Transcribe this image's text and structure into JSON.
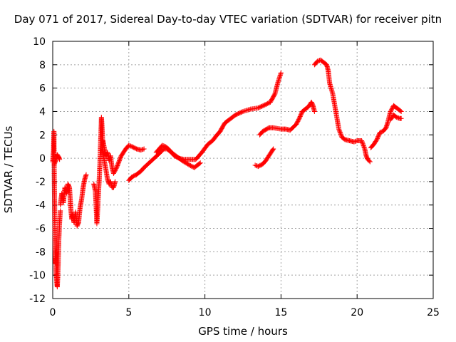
{
  "chart_data": {
    "type": "scatter",
    "title": "Day 071 of 2017, Sidereal Day-to-day VTEC variation (SDTVAR) for receiver pitn",
    "xlabel": "GPS time / hours",
    "ylabel": "SDTVAR / TECUs",
    "xlim": [
      0,
      25
    ],
    "ylim": [
      -12,
      10
    ],
    "xticks": [
      "0",
      "5",
      "10",
      "15",
      "20",
      "25"
    ],
    "yticks": [
      "-12",
      "-10",
      "-8",
      "-6",
      "-4",
      "-2",
      "0",
      "2",
      "4",
      "6",
      "8",
      "10"
    ],
    "grid": true,
    "marker": "plus",
    "color": "#ff0000",
    "segments": [
      [
        [
          0.0,
          -0.3
        ],
        [
          0.05,
          0.6
        ],
        [
          0.08,
          2.3
        ],
        [
          0.1,
          -1.5
        ],
        [
          0.12,
          -3.5
        ],
        [
          0.14,
          -6.0
        ],
        [
          0.16,
          -8.0
        ],
        [
          0.18,
          -9.0
        ],
        [
          0.2,
          -8.0
        ],
        [
          0.22,
          -9.8
        ],
        [
          0.25,
          -10.2
        ],
        [
          0.28,
          -10.8
        ],
        [
          0.3,
          -11.0
        ],
        [
          0.33,
          -10.2
        ],
        [
          0.36,
          -9.0
        ],
        [
          0.4,
          -7.0
        ],
        [
          0.45,
          -5.5
        ],
        [
          0.5,
          -4.5
        ]
      ],
      [
        [
          0.1,
          -0.5
        ],
        [
          0.2,
          -0.2
        ],
        [
          0.3,
          0.3
        ],
        [
          0.4,
          0.1
        ],
        [
          0.45,
          -0.1
        ]
      ],
      [
        [
          0.5,
          -4.0
        ],
        [
          0.6,
          -3.0
        ],
        [
          0.7,
          -3.8
        ],
        [
          0.8,
          -2.5
        ],
        [
          0.9,
          -3.0
        ],
        [
          1.0,
          -2.2
        ],
        [
          1.1,
          -2.5
        ],
        [
          1.15,
          -3.5
        ],
        [
          1.2,
          -4.5
        ],
        [
          1.25,
          -5.2
        ],
        [
          1.3,
          -4.8
        ],
        [
          1.4,
          -5.5
        ],
        [
          1.5,
          -4.6
        ],
        [
          1.6,
          -5.8
        ],
        [
          1.7,
          -5.5
        ],
        [
          1.8,
          -4.2
        ],
        [
          1.9,
          -3.5
        ],
        [
          2.0,
          -2.5
        ],
        [
          2.1,
          -1.8
        ],
        [
          2.2,
          -1.4
        ]
      ],
      [
        [
          2.7,
          -2.2
        ],
        [
          2.8,
          -2.8
        ],
        [
          2.85,
          -4.0
        ],
        [
          2.9,
          -5.6
        ],
        [
          2.95,
          -4.5
        ],
        [
          3.0,
          -3.0
        ],
        [
          3.05,
          -2.0
        ],
        [
          3.1,
          -0.5
        ],
        [
          3.15,
          1.5
        ],
        [
          3.2,
          3.5
        ],
        [
          3.25,
          2.5
        ],
        [
          3.3,
          0.5
        ],
        [
          3.4,
          -0.3
        ],
        [
          3.5,
          -1.0
        ],
        [
          3.6,
          -1.8
        ],
        [
          3.7,
          -2.2
        ],
        [
          3.8,
          -2.0
        ],
        [
          3.9,
          -2.5
        ],
        [
          4.0,
          -2.5
        ],
        [
          4.1,
          -2.0
        ]
      ],
      [
        [
          3.3,
          1.5
        ],
        [
          3.4,
          0.8
        ],
        [
          3.5,
          0.2
        ],
        [
          3.6,
          0.5
        ],
        [
          3.7,
          -0.2
        ],
        [
          3.8,
          0.2
        ],
        [
          3.9,
          -0.8
        ],
        [
          4.0,
          -1.3
        ],
        [
          4.2,
          -0.8
        ],
        [
          4.5,
          0.2
        ],
        [
          4.8,
          0.8
        ],
        [
          5.0,
          1.1
        ],
        [
          5.2,
          1.0
        ],
        [
          5.5,
          0.8
        ],
        [
          5.8,
          0.7
        ],
        [
          6.0,
          0.8
        ]
      ],
      [
        [
          5.0,
          -1.9
        ],
        [
          5.2,
          -1.6
        ],
        [
          5.5,
          -1.4
        ],
        [
          5.8,
          -1.1
        ],
        [
          6.0,
          -0.8
        ],
        [
          6.5,
          -0.2
        ],
        [
          7.0,
          0.4
        ],
        [
          7.3,
          0.8
        ],
        [
          7.5,
          0.8
        ],
        [
          8.0,
          0.3
        ],
        [
          8.5,
          -0.2
        ],
        [
          9.0,
          -0.6
        ],
        [
          9.3,
          -0.8
        ],
        [
          9.5,
          -0.6
        ],
        [
          9.7,
          -0.4
        ]
      ],
      [
        [
          6.8,
          0.5
        ],
        [
          7.0,
          0.8
        ],
        [
          7.2,
          1.1
        ],
        [
          7.4,
          1.0
        ],
        [
          7.6,
          0.8
        ],
        [
          7.8,
          0.5
        ],
        [
          8.0,
          0.2
        ],
        [
          8.3,
          0.0
        ],
        [
          8.6,
          -0.1
        ],
        [
          9.0,
          -0.1
        ],
        [
          9.4,
          -0.1
        ],
        [
          9.8,
          0.5
        ],
        [
          10.2,
          1.2
        ],
        [
          10.5,
          1.5
        ],
        [
          10.8,
          2.0
        ],
        [
          11.0,
          2.3
        ],
        [
          11.3,
          3.0
        ],
        [
          11.6,
          3.3
        ],
        [
          12.0,
          3.7
        ],
        [
          12.5,
          4.0
        ],
        [
          13.0,
          4.2
        ],
        [
          13.5,
          4.3
        ],
        [
          14.0,
          4.6
        ],
        [
          14.3,
          4.8
        ],
        [
          14.6,
          5.5
        ],
        [
          14.8,
          6.5
        ],
        [
          15.0,
          7.3
        ]
      ],
      [
        [
          13.3,
          -0.6
        ],
        [
          13.5,
          -0.7
        ],
        [
          13.8,
          -0.5
        ],
        [
          14.0,
          -0.2
        ],
        [
          14.2,
          0.2
        ],
        [
          14.4,
          0.6
        ],
        [
          14.5,
          0.8
        ]
      ],
      [
        [
          13.6,
          2.0
        ],
        [
          13.8,
          2.3
        ],
        [
          14.2,
          2.6
        ],
        [
          14.5,
          2.6
        ],
        [
          15.0,
          2.5
        ],
        [
          15.3,
          2.5
        ],
        [
          15.6,
          2.4
        ],
        [
          16.0,
          2.9
        ],
        [
          16.2,
          3.4
        ],
        [
          16.4,
          4.0
        ],
        [
          16.6,
          4.2
        ],
        [
          16.8,
          4.4
        ],
        [
          17.0,
          4.8
        ],
        [
          17.1,
          4.5
        ],
        [
          17.2,
          4.0
        ]
      ],
      [
        [
          17.2,
          8.0
        ],
        [
          17.4,
          8.3
        ],
        [
          17.6,
          8.4
        ],
        [
          17.8,
          8.2
        ],
        [
          18.0,
          8.0
        ],
        [
          18.1,
          7.5
        ],
        [
          18.2,
          6.4
        ],
        [
          18.4,
          5.5
        ],
        [
          18.6,
          4.0
        ],
        [
          18.8,
          2.5
        ],
        [
          19.0,
          1.8
        ],
        [
          19.2,
          1.6
        ],
        [
          19.5,
          1.5
        ],
        [
          19.8,
          1.4
        ],
        [
          20.0,
          1.5
        ],
        [
          20.3,
          1.5
        ],
        [
          20.5,
          0.8
        ],
        [
          20.6,
          0.2
        ],
        [
          20.7,
          -0.1
        ],
        [
          20.85,
          -0.3
        ]
      ],
      [
        [
          20.9,
          0.9
        ],
        [
          21.1,
          1.2
        ],
        [
          21.3,
          1.6
        ],
        [
          21.5,
          2.2
        ],
        [
          21.7,
          2.3
        ],
        [
          21.9,
          2.6
        ],
        [
          22.0,
          3.0
        ],
        [
          22.2,
          4.0
        ],
        [
          22.4,
          4.5
        ],
        [
          22.6,
          4.3
        ],
        [
          22.9,
          4.0
        ]
      ],
      [
        [
          22.2,
          3.3
        ],
        [
          22.4,
          3.7
        ],
        [
          22.6,
          3.5
        ],
        [
          22.8,
          3.4
        ],
        [
          22.9,
          3.4
        ]
      ]
    ]
  }
}
